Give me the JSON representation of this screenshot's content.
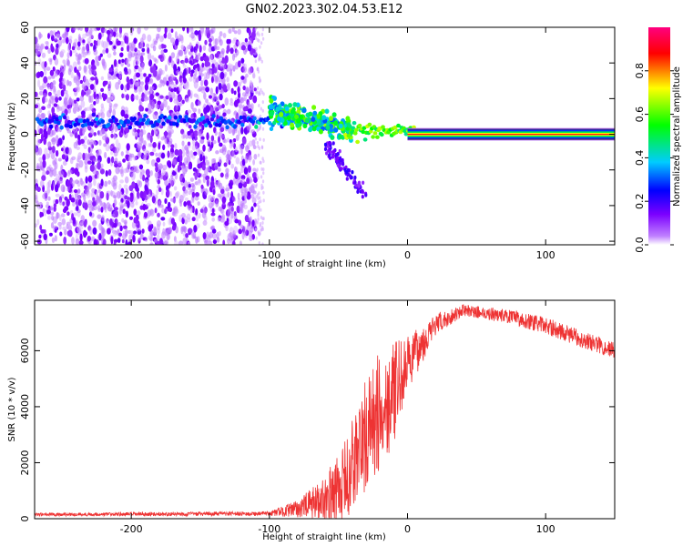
{
  "title": "GN02.2023.302.04.53.E12",
  "chart_data": [
    {
      "type": "heatmap",
      "xlabel": "Height of straight line (km)",
      "ylabel": "Frequency (Hz)",
      "xlim": [
        -270,
        150
      ],
      "ylim": [
        -62,
        60
      ],
      "x_ticks": [
        -200,
        -100,
        0,
        100
      ],
      "y_ticks": [
        -60,
        -40,
        -20,
        0,
        20,
        40,
        60
      ],
      "colorbar": {
        "label": "Normalized spectral amplitude",
        "range": [
          0,
          1
        ],
        "ticks": [
          0.0,
          0.2,
          0.4,
          0.6,
          0.8
        ],
        "colors": [
          "#ffffff",
          "#7b00ff",
          "#0000ff",
          "#00ccff",
          "#00ff00",
          "#ffff00",
          "#ff0000",
          "#ff0080"
        ]
      },
      "features": [
        {
          "x_range": [
            -270,
            -110
          ],
          "freq_range": [
            -62,
            60
          ],
          "amplitude": 0.1
        },
        {
          "x_range": [
            -270,
            -50
          ],
          "freq_center": 7,
          "amplitude": 0.3
        },
        {
          "x_range": [
            -100,
            -40
          ],
          "freq_center": 8,
          "amplitude": 0.5
        },
        {
          "x_range": [
            -60,
            -30
          ],
          "freq_range": [
            -35,
            -5
          ],
          "amplitude": 0.2
        },
        {
          "x_range": [
            -45,
            0
          ],
          "freq_center": 1,
          "amplitude": 0.6
        },
        {
          "x_range": [
            0,
            150
          ],
          "freq_center": 0,
          "amplitude": 0.9
        }
      ]
    },
    {
      "type": "line",
      "xlabel": "Height of straight line (km)",
      "ylabel": "SNR (10 * v/v)",
      "xlim": [
        -270,
        150
      ],
      "ylim": [
        0,
        7800
      ],
      "x_ticks": [
        -200,
        -100,
        0,
        100
      ],
      "y_ticks": [
        0,
        2000,
        4000,
        6000
      ],
      "series": [
        {
          "color": "#ee3333",
          "envelope": [
            {
              "x": -270,
              "mean": 150,
              "noise": 60
            },
            {
              "x": -100,
              "mean": 180,
              "noise": 80
            },
            {
              "x": -80,
              "mean": 350,
              "noise": 300
            },
            {
              "x": -60,
              "mean": 700,
              "noise": 800
            },
            {
              "x": -45,
              "mean": 1300,
              "noise": 1500
            },
            {
              "x": -35,
              "mean": 2500,
              "noise": 2000
            },
            {
              "x": -20,
              "mean": 3800,
              "noise": 2200
            },
            {
              "x": -10,
              "mean": 4500,
              "noise": 1800
            },
            {
              "x": 0,
              "mean": 5500,
              "noise": 1000
            },
            {
              "x": 20,
              "mean": 6900,
              "noise": 400
            },
            {
              "x": 40,
              "mean": 7450,
              "noise": 200
            },
            {
              "x": 70,
              "mean": 7250,
              "noise": 250
            },
            {
              "x": 100,
              "mean": 6900,
              "noise": 300
            },
            {
              "x": 130,
              "mean": 6350,
              "noise": 300
            },
            {
              "x": 150,
              "mean": 6000,
              "noise": 300
            }
          ]
        }
      ]
    }
  ]
}
